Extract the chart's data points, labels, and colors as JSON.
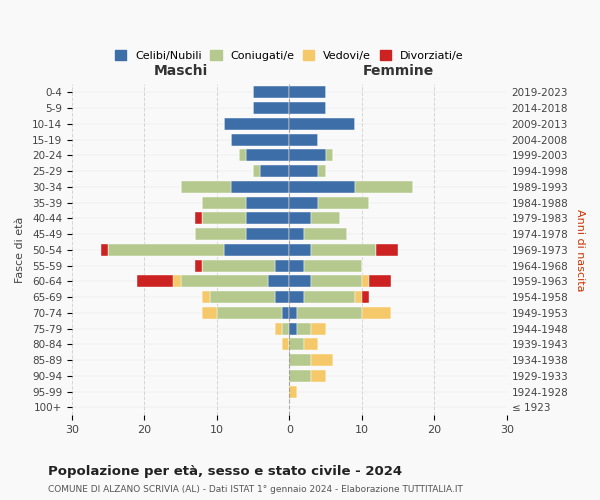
{
  "age_groups": [
    "100+",
    "95-99",
    "90-94",
    "85-89",
    "80-84",
    "75-79",
    "70-74",
    "65-69",
    "60-64",
    "55-59",
    "50-54",
    "45-49",
    "40-44",
    "35-39",
    "30-34",
    "25-29",
    "20-24",
    "15-19",
    "10-14",
    "5-9",
    "0-4"
  ],
  "birth_years": [
    "≤ 1923",
    "1924-1928",
    "1929-1933",
    "1934-1938",
    "1939-1943",
    "1944-1948",
    "1949-1953",
    "1954-1958",
    "1959-1963",
    "1964-1968",
    "1969-1973",
    "1974-1978",
    "1979-1983",
    "1984-1988",
    "1989-1993",
    "1994-1998",
    "1999-2003",
    "2004-2008",
    "2009-2013",
    "2014-2018",
    "2019-2023"
  ],
  "male": {
    "celibi": [
      0,
      0,
      0,
      0,
      0,
      0,
      1,
      2,
      3,
      2,
      9,
      6,
      6,
      6,
      8,
      4,
      6,
      8,
      9,
      5,
      5
    ],
    "coniugati": [
      0,
      0,
      0,
      0,
      0,
      1,
      9,
      9,
      12,
      10,
      16,
      7,
      6,
      6,
      7,
      1,
      1,
      0,
      0,
      0,
      0
    ],
    "vedovi": [
      0,
      0,
      0,
      0,
      1,
      1,
      2,
      1,
      1,
      0,
      0,
      0,
      0,
      0,
      0,
      0,
      0,
      0,
      0,
      0,
      0
    ],
    "divorziati": [
      0,
      0,
      0,
      0,
      0,
      0,
      0,
      0,
      5,
      1,
      1,
      0,
      1,
      0,
      0,
      0,
      0,
      0,
      0,
      0,
      0
    ]
  },
  "female": {
    "nubili": [
      0,
      0,
      0,
      0,
      0,
      1,
      1,
      2,
      3,
      2,
      3,
      2,
      3,
      4,
      9,
      4,
      5,
      4,
      9,
      5,
      5
    ],
    "coniugate": [
      0,
      0,
      3,
      3,
      2,
      2,
      9,
      7,
      7,
      8,
      9,
      6,
      4,
      7,
      8,
      1,
      1,
      0,
      0,
      0,
      0
    ],
    "vedove": [
      0,
      1,
      2,
      3,
      2,
      2,
      4,
      1,
      1,
      0,
      0,
      0,
      0,
      0,
      0,
      0,
      0,
      0,
      0,
      0,
      0
    ],
    "divorziate": [
      0,
      0,
      0,
      0,
      0,
      0,
      0,
      1,
      3,
      0,
      3,
      0,
      0,
      0,
      0,
      0,
      0,
      0,
      0,
      0,
      0
    ]
  },
  "colors": {
    "celibi": "#3d6ea8",
    "coniugati": "#b5c98e",
    "vedovi": "#f5c96a",
    "divorziati": "#cc2222"
  },
  "xlim": 30,
  "title": "Popolazione per età, sesso e stato civile - 2024",
  "subtitle": "COMUNE DI ALZANO SCRIVIA (AL) - Dati ISTAT 1° gennaio 2024 - Elaborazione TUTTITALIA.IT",
  "ylabel_left": "Fasce di età",
  "ylabel_right": "Anni di nascita",
  "xlabel_left": "Maschi",
  "xlabel_right": "Femmine",
  "bg_color": "#f9f9f9",
  "grid_color": "#cccccc"
}
